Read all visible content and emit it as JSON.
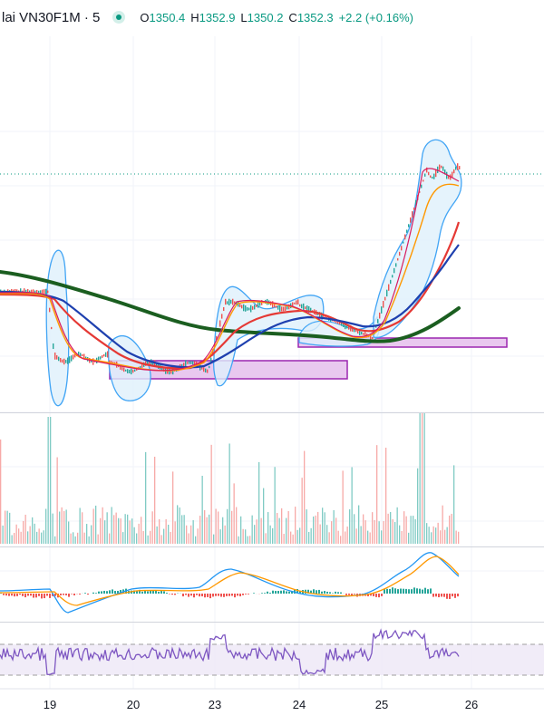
{
  "legend": {
    "symbol": "lai VN30F1M · 5",
    "open_key": "O",
    "open": "1350.4",
    "high_key": "H",
    "high": "1352.9",
    "low_key": "L",
    "low": "1350.2",
    "close_key": "C",
    "close": "1352.3",
    "change": "+2.2 (+0.16%)",
    "up_color": "#089981",
    "status_icon": "live-dot-icon"
  },
  "x_axis": {
    "labels": [
      "19",
      "20",
      "23",
      "24",
      "25",
      "26"
    ]
  },
  "colors": {
    "ma_long": "#1b5e20",
    "ma_mid": "#e53935",
    "ma_slow": "#1e40af",
    "bollinger": "#42a5f5",
    "zone_fill": "#e1bee7",
    "zone_stroke": "#9c27b0",
    "volume_up": "#26a69a",
    "volume_down": "#ef5350",
    "macd": "#2196f3",
    "signal": "#ff9800",
    "rsi": "#7e57c2"
  }
}
